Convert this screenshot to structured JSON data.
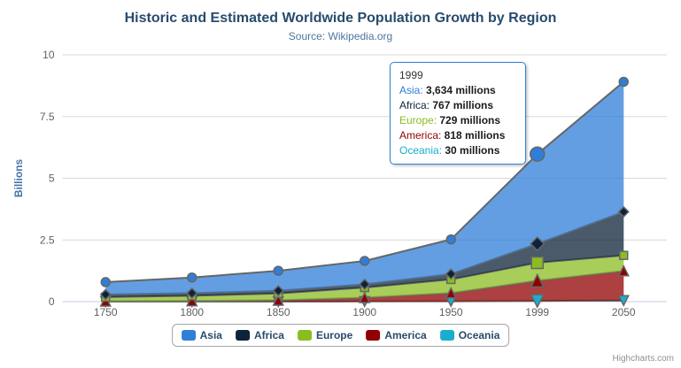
{
  "header": {
    "title": "Historic and Estimated Worldwide Population Growth by Region",
    "subtitle": "Source: Wikipedia.org"
  },
  "chart_data": {
    "type": "area",
    "stacking": "normal",
    "title": "Historic and Estimated Worldwide Population Growth by Region",
    "subtitle": "Source: Wikipedia.org",
    "xlabel": "",
    "ylabel": "Billions",
    "unit": "millions",
    "categories": [
      "1750",
      "1800",
      "1850",
      "1900",
      "1950",
      "1999",
      "2050"
    ],
    "yticks": [
      0,
      2.5,
      5,
      7.5,
      10
    ],
    "ylim": [
      0,
      10
    ],
    "grid": true,
    "legend_position": "bottom-center",
    "hover_index": 5,
    "series": [
      {
        "name": "Asia",
        "color": "#2f7ed8",
        "marker": "circle",
        "values": [
          502,
          635,
          809,
          947,
          1402,
          3634,
          5268
        ]
      },
      {
        "name": "Africa",
        "color": "#0d233a",
        "marker": "diamond",
        "values": [
          106,
          107,
          111,
          133,
          221,
          767,
          1766
        ]
      },
      {
        "name": "Europe",
        "color": "#8bbc21",
        "marker": "square",
        "values": [
          163,
          203,
          276,
          408,
          547,
          729,
          628
        ]
      },
      {
        "name": "America",
        "color": "#910000",
        "marker": "triangle",
        "values": [
          18,
          31,
          54,
          156,
          339,
          818,
          1201
        ]
      },
      {
        "name": "Oceania",
        "color": "#1aadce",
        "marker": "triangle-down",
        "values": [
          2,
          2,
          2,
          6,
          13,
          30,
          46
        ]
      }
    ]
  },
  "tooltip": {
    "header": "1999",
    "rows": [
      {
        "name": "Asia",
        "color": "#2f7ed8",
        "value": "3,634 millions"
      },
      {
        "name": "Africa",
        "color": "#0d233a",
        "value": "767 millions"
      },
      {
        "name": "Europe",
        "color": "#8bbc21",
        "value": "729 millions"
      },
      {
        "name": "America",
        "color": "#910000",
        "value": "818 millions"
      },
      {
        "name": "Oceania",
        "color": "#1aadce",
        "value": "30 millions"
      }
    ]
  },
  "credits": {
    "label": "Highcharts.com"
  },
  "colors": {
    "title_text": "#274b6d",
    "subtitle_text": "#4d759e",
    "axis_label_text": "#606060",
    "yaxis_title_text": "#4572A7",
    "gridline": "#d8d8d8",
    "axis_line": "#c0d0e0",
    "series_outline": "#666666",
    "tooltip_border": "#2f7ed8",
    "legend_border": "#a6a6a6",
    "legend_text": "#274b6d"
  }
}
